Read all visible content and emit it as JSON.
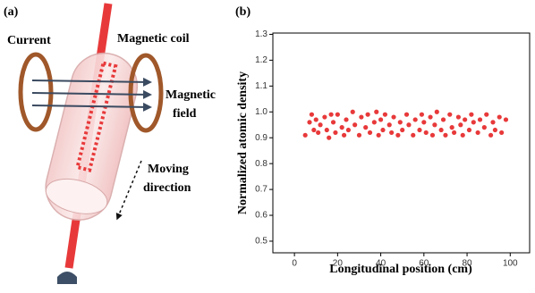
{
  "diagram": {
    "panel_label": "(a)",
    "labels": [
      "Current",
      "Magnetic coil",
      "Magnetic",
      "field",
      "Moving",
      "direction"
    ]
  },
  "chart_data": {
    "type": "scatter",
    "panel_label": "(b)",
    "x_label": "Longitudinal position (cm)",
    "y_label": "Normalized atomic density",
    "color": "#e8393a",
    "xlim": [
      -10,
      109
    ],
    "ylim": [
      0.455,
      1.305
    ],
    "xticks": [
      0,
      20,
      40,
      60,
      80,
      100
    ],
    "yticks": [
      0.5,
      0.6,
      0.7,
      0.8,
      0.9,
      {
        "value": 1,
        "label": "1.0"
      },
      1.1,
      1.2,
      1.3
    ],
    "x": [
      5,
      7,
      8,
      9,
      10,
      11,
      12,
      14,
      15,
      16,
      17,
      18,
      19,
      20,
      22,
      23,
      24,
      25,
      27,
      28,
      30,
      31,
      33,
      34,
      35,
      37,
      38,
      39,
      40,
      41,
      42,
      44,
      45,
      46,
      48,
      49,
      50,
      52,
      53,
      55,
      56,
      58,
      59,
      60,
      61,
      63,
      64,
      65,
      66,
      68,
      69,
      70,
      72,
      73,
      74,
      76,
      77,
      78,
      79,
      81,
      82,
      83,
      85,
      86,
      88,
      89,
      91,
      92,
      93,
      95,
      96,
      98
    ],
    "values": [
      0.91,
      0.96,
      0.99,
      0.93,
      0.97,
      0.92,
      0.95,
      0.98,
      0.93,
      0.9,
      0.99,
      0.96,
      0.92,
      0.99,
      0.94,
      0.91,
      0.97,
      0.93,
      1.0,
      0.95,
      0.91,
      0.98,
      0.94,
      0.99,
      0.92,
      0.96,
      1.0,
      0.91,
      0.97,
      0.93,
      0.99,
      0.95,
      0.92,
      0.98,
      0.91,
      0.96,
      0.93,
      0.99,
      0.95,
      0.91,
      0.97,
      0.93,
      0.99,
      0.96,
      0.92,
      0.98,
      0.91,
      0.95,
      1.0,
      0.93,
      0.97,
      0.91,
      0.99,
      0.94,
      0.92,
      0.98,
      0.95,
      0.91,
      0.97,
      0.93,
      0.99,
      0.96,
      0.92,
      0.97,
      0.94,
      0.99,
      0.91,
      0.96,
      0.93,
      0.98,
      0.92,
      0.97
    ]
  }
}
